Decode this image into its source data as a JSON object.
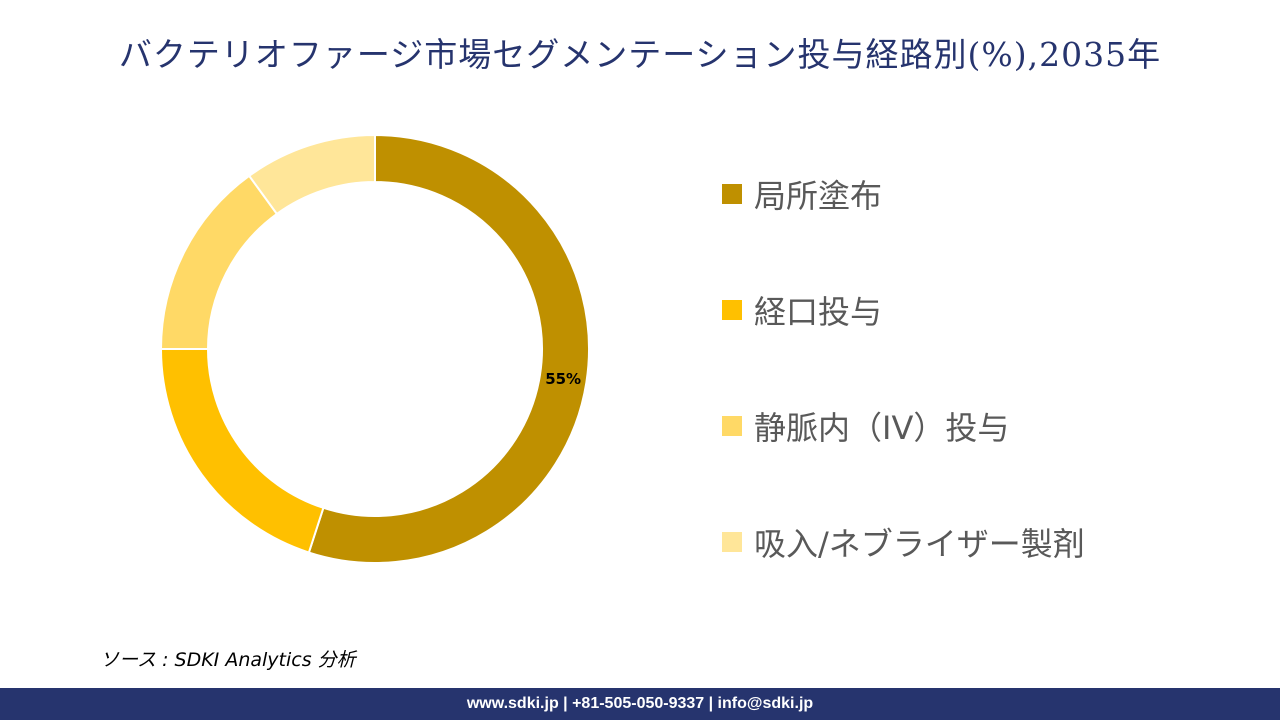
{
  "title": "バクテリオファージ市場セグメンテーション投与経路別(%),2035年",
  "source": "ソース : SDKI Analytics 分析",
  "footer": "www.sdki.jp | +81-505-050-9337 | info@sdki.jp",
  "chart_data": {
    "type": "pie",
    "donut": true,
    "title": "バクテリオファージ市場セグメンテーション投与経路別(%),2035年",
    "legend_position": "right",
    "categories": [
      "局所塗布",
      "経口投与",
      "静脈内（IV）投与",
      "吸入/ネブライザー製剤"
    ],
    "values": [
      55,
      20,
      15,
      10
    ],
    "colors": [
      "#bf9000",
      "#ffc000",
      "#ffd966",
      "#ffe699"
    ],
    "data_labels": [
      "55%",
      "",
      "",
      ""
    ]
  }
}
